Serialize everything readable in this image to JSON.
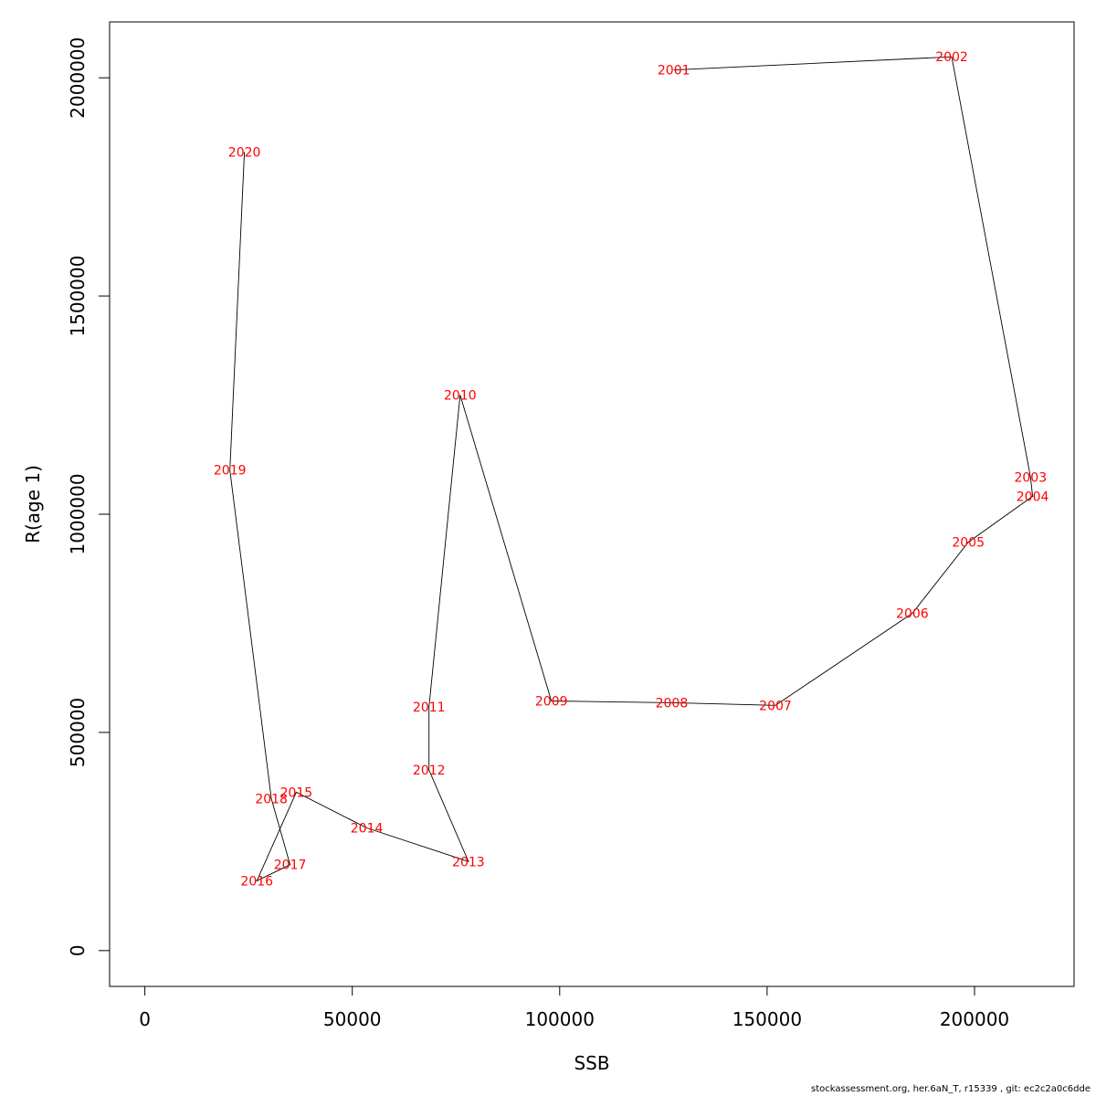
{
  "chart_data": {
    "type": "line",
    "xlabel": "SSB",
    "ylabel": "R(age 1)",
    "xlim": [
      -8500,
      224000
    ],
    "ylim": [
      -82000,
      2128000
    ],
    "xticks": [
      0,
      50000,
      100000,
      150000,
      200000
    ],
    "yticks": [
      0,
      500000,
      1000000,
      1500000,
      2000000
    ],
    "grid": false,
    "points": [
      {
        "label": "2001",
        "x": 127500,
        "y": 2018000
      },
      {
        "label": "2002",
        "x": 194500,
        "y": 2048000
      },
      {
        "label": "2003",
        "x": 213500,
        "y": 1085000
      },
      {
        "label": "2004",
        "x": 214000,
        "y": 1041000
      },
      {
        "label": "2005",
        "x": 198500,
        "y": 936000
      },
      {
        "label": "2006",
        "x": 185000,
        "y": 773000
      },
      {
        "label": "2007",
        "x": 152000,
        "y": 562000
      },
      {
        "label": "2008",
        "x": 127000,
        "y": 568000
      },
      {
        "label": "2009",
        "x": 98000,
        "y": 572000
      },
      {
        "label": "2010",
        "x": 76000,
        "y": 1273000
      },
      {
        "label": "2011",
        "x": 68500,
        "y": 558000
      },
      {
        "label": "2012",
        "x": 68500,
        "y": 414000
      },
      {
        "label": "2013",
        "x": 78000,
        "y": 204000
      },
      {
        "label": "2014",
        "x": 53500,
        "y": 281000
      },
      {
        "label": "2015",
        "x": 36500,
        "y": 363000
      },
      {
        "label": "2016",
        "x": 27000,
        "y": 160000
      },
      {
        "label": "2017",
        "x": 35000,
        "y": 197000
      },
      {
        "label": "2018",
        "x": 30500,
        "y": 348000
      },
      {
        "label": "2019",
        "x": 20500,
        "y": 1101000
      },
      {
        "label": "2020",
        "x": 24000,
        "y": 1830000
      }
    ]
  },
  "footer": "stockassessment.org, her.6aN_T, r15339 , git: ec2c2a0c6dde"
}
